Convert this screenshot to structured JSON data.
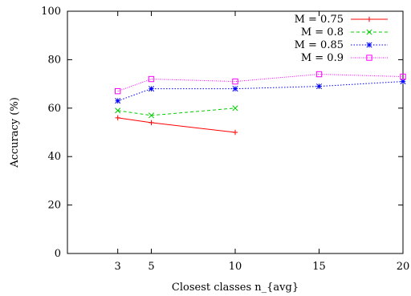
{
  "chart_data": {
    "type": "line",
    "xlabel": "Closest classes n_{avg}",
    "ylabel": "Accuracy (%)",
    "xlim": [
      0,
      20
    ],
    "ylim": [
      0,
      100
    ],
    "x_ticks": [
      3,
      5,
      10,
      15,
      20
    ],
    "y_ticks": [
      0,
      20,
      40,
      60,
      80,
      100
    ],
    "grid": false,
    "legend_position": "top-right",
    "series": [
      {
        "name": "M = 0.75",
        "color": "#ff0000",
        "marker": "plus",
        "dash": "solid",
        "x": [
          3,
          5,
          10
        ],
        "y": [
          56,
          54,
          50
        ]
      },
      {
        "name": "M = 0.8",
        "color": "#00cc00",
        "marker": "cross",
        "dash": "dashed",
        "x": [
          3,
          5,
          10
        ],
        "y": [
          59,
          57,
          60
        ]
      },
      {
        "name": "M = 0.85",
        "color": "#0000ff",
        "marker": "star",
        "dash": "dotted",
        "x": [
          3,
          5,
          10,
          15,
          20
        ],
        "y": [
          63,
          68,
          68,
          69,
          71
        ]
      },
      {
        "name": "M = 0.9",
        "color": "#ff00ff",
        "marker": "square",
        "dash": "finedot",
        "x": [
          3,
          5,
          10,
          15,
          20
        ],
        "y": [
          67,
          72,
          71,
          74,
          73
        ]
      }
    ]
  }
}
